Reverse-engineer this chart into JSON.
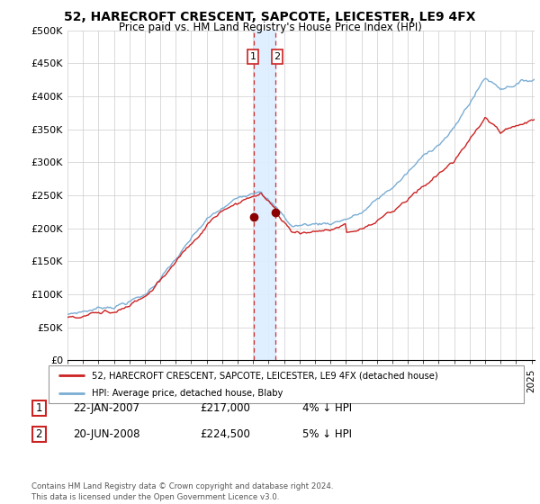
{
  "title": "52, HARECROFT CRESCENT, SAPCOTE, LEICESTER, LE9 4FX",
  "subtitle": "Price paid vs. HM Land Registry's House Price Index (HPI)",
  "ylim": [
    0,
    500000
  ],
  "yticks": [
    0,
    50000,
    100000,
    150000,
    200000,
    250000,
    300000,
    350000,
    400000,
    450000,
    500000
  ],
  "ytick_labels": [
    "£0",
    "£50K",
    "£100K",
    "£150K",
    "£200K",
    "£250K",
    "£300K",
    "£350K",
    "£400K",
    "£450K",
    "£500K"
  ],
  "xlim_start": 1995.0,
  "xlim_end": 2025.2,
  "hpi_color": "#7aadd4",
  "price_color": "#cc2222",
  "marker_color": "#8b0000",
  "shade_color": "#ddeeff",
  "t1_x": 2007.06,
  "t1_y": 217000,
  "t2_x": 2008.47,
  "t2_y": 224500,
  "legend_address": "52, HARECROFT CRESCENT, SAPCOTE, LEICESTER, LE9 4FX (detached house)",
  "legend_hpi": "HPI: Average price, detached house, Blaby",
  "footer": "Contains HM Land Registry data © Crown copyright and database right 2024.\nThis data is licensed under the Open Government Licence v3.0.",
  "table_rows": [
    {
      "num": "1",
      "date": "22-JAN-2007",
      "price": "£217,000",
      "pct": "4% ↓ HPI"
    },
    {
      "num": "2",
      "date": "20-JUN-2008",
      "price": "£224,500",
      "pct": "5% ↓ HPI"
    }
  ]
}
